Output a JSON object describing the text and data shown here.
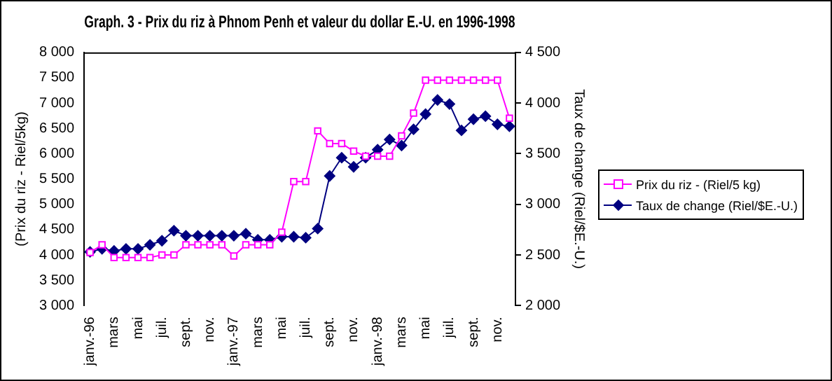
{
  "chart_data": {
    "type": "line",
    "title": "Graph. 3 - Prix du riz à Phnom Penh et valeur du dollar E.-U. en 1996-1998",
    "ylabel": "(Prix du riz - Riel/5kg)",
    "y2label": "Taux de change (Riel/$E.-U.)",
    "categories": [
      "janv.-96",
      null,
      "mars",
      null,
      "mai",
      null,
      "juil.",
      null,
      "sept.",
      null,
      "nov.",
      null,
      "janv.-97",
      null,
      "mars",
      null,
      "mai",
      null,
      "juil.",
      null,
      "sept.",
      null,
      "nov.",
      null,
      "janv.-98",
      null,
      "mars",
      null,
      "mai",
      null,
      "juil.",
      null,
      "sept.",
      null,
      "nov.",
      null
    ],
    "series": [
      {
        "name": "Prix du riz - (Riel/5 kg)",
        "color": "#ff00ff",
        "marker": "square",
        "values": [
          4050,
          4200,
          3950,
          3950,
          3950,
          3950,
          4000,
          4000,
          4200,
          4200,
          4200,
          4200,
          3980,
          4200,
          4200,
          4200,
          4450,
          5450,
          5450,
          6450,
          6200,
          6200,
          6050,
          5950,
          5950,
          5950,
          6350,
          6800,
          7450,
          7450,
          7450,
          7450,
          7450,
          7450,
          7450,
          6700
        ]
      },
      {
        "name": "Taux de change (Riel/$E.-U.)",
        "color": "#000080",
        "marker": "diamond",
        "axis": "y2",
        "values": [
          2530,
          2560,
          2540,
          2560,
          2560,
          2600,
          2640,
          2740,
          2690,
          2690,
          2690,
          2690,
          2690,
          2710,
          2650,
          2650,
          2680,
          2680,
          2670,
          2760,
          3280,
          3460,
          3370,
          3460,
          3540,
          3640,
          3580,
          3740,
          3890,
          4030,
          3990,
          3730,
          3840,
          3870,
          3790,
          3770
        ]
      }
    ],
    "ylim": [
      3000,
      8000
    ],
    "yticks": [
      {
        "value": 3000,
        "label": "3 000"
      },
      {
        "value": 3500,
        "label": "3 500"
      },
      {
        "value": 4000,
        "label": "4 000"
      },
      {
        "value": 4500,
        "label": "4 500"
      },
      {
        "value": 5000,
        "label": "5 000"
      },
      {
        "value": 5500,
        "label": "5 500"
      },
      {
        "value": 6000,
        "label": "6 000"
      },
      {
        "value": 6500,
        "label": "6 500"
      },
      {
        "value": 7000,
        "label": "7 000"
      },
      {
        "value": 7500,
        "label": "7 500"
      },
      {
        "value": 8000,
        "label": "8 000"
      }
    ],
    "y2lim": [
      2000,
      4500
    ],
    "y2ticks": [
      {
        "value": 2000,
        "label": "2 000"
      },
      {
        "value": 2500,
        "label": "2 500"
      },
      {
        "value": 3000,
        "label": "3 000"
      },
      {
        "value": 3500,
        "label": "3 500"
      },
      {
        "value": 4000,
        "label": "4 000"
      },
      {
        "value": 4500,
        "label": "4 500"
      }
    ],
    "grid": false,
    "legend": "right",
    "line_style": "solid"
  }
}
